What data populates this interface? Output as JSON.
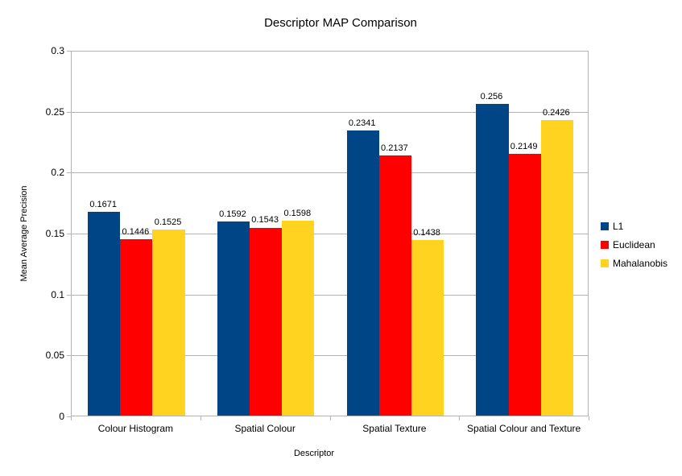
{
  "chart_data": {
    "type": "bar",
    "title": "Descriptor MAP Comparison",
    "xlabel": "Descriptor",
    "ylabel": "Mean Average Precision",
    "ylim": [
      0,
      0.3
    ],
    "y_ticks": [
      "0",
      "0.05",
      "0.1",
      "0.15",
      "0.2",
      "0.25",
      "0.3"
    ],
    "grid": true,
    "legend_position": "right",
    "categories": [
      "Colour Histogram",
      "Spatial Colour",
      "Spatial Texture",
      "Spatial Colour and Texture"
    ],
    "series": [
      {
        "name": "L1",
        "color": "#004586",
        "values": [
          0.1671,
          0.1592,
          0.2341,
          0.256
        ]
      },
      {
        "name": "Euclidean",
        "color": "#FF0000",
        "values": [
          0.1446,
          0.1543,
          0.2137,
          0.2149
        ]
      },
      {
        "name": "Mahalanobis",
        "color": "#FFD320",
        "values": [
          0.1525,
          0.1598,
          0.1438,
          0.2426
        ]
      }
    ],
    "colors": {
      "gridline": "#b3b3b3",
      "axis": "#b3b3b3",
      "text": "#000000",
      "background": "#ffffff"
    }
  }
}
